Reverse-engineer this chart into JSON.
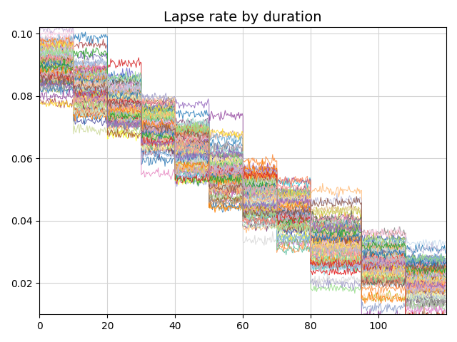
{
  "title": "Lapse rate by duration",
  "xlim": [
    0,
    120
  ],
  "ylim": [
    0.01,
    0.102
  ],
  "yticks": [
    0.02,
    0.04,
    0.06,
    0.08,
    0.1
  ],
  "xticks": [
    0,
    20,
    40,
    60,
    80,
    100
  ],
  "n_lines": 100,
  "step_breakpoints": [
    0,
    10,
    20,
    30,
    40,
    50,
    60,
    70,
    80,
    95,
    108,
    120
  ],
  "step_levels": [
    0.09,
    0.083,
    0.077,
    0.07,
    0.063,
    0.055,
    0.048,
    0.043,
    0.033,
    0.025,
    0.02,
    0.02
  ],
  "within_spread": 0.005,
  "between_spread": 0.003,
  "noise_within": 0.0008,
  "seed": 17,
  "figsize": [
    6.4,
    4.8
  ],
  "dpi": 100
}
